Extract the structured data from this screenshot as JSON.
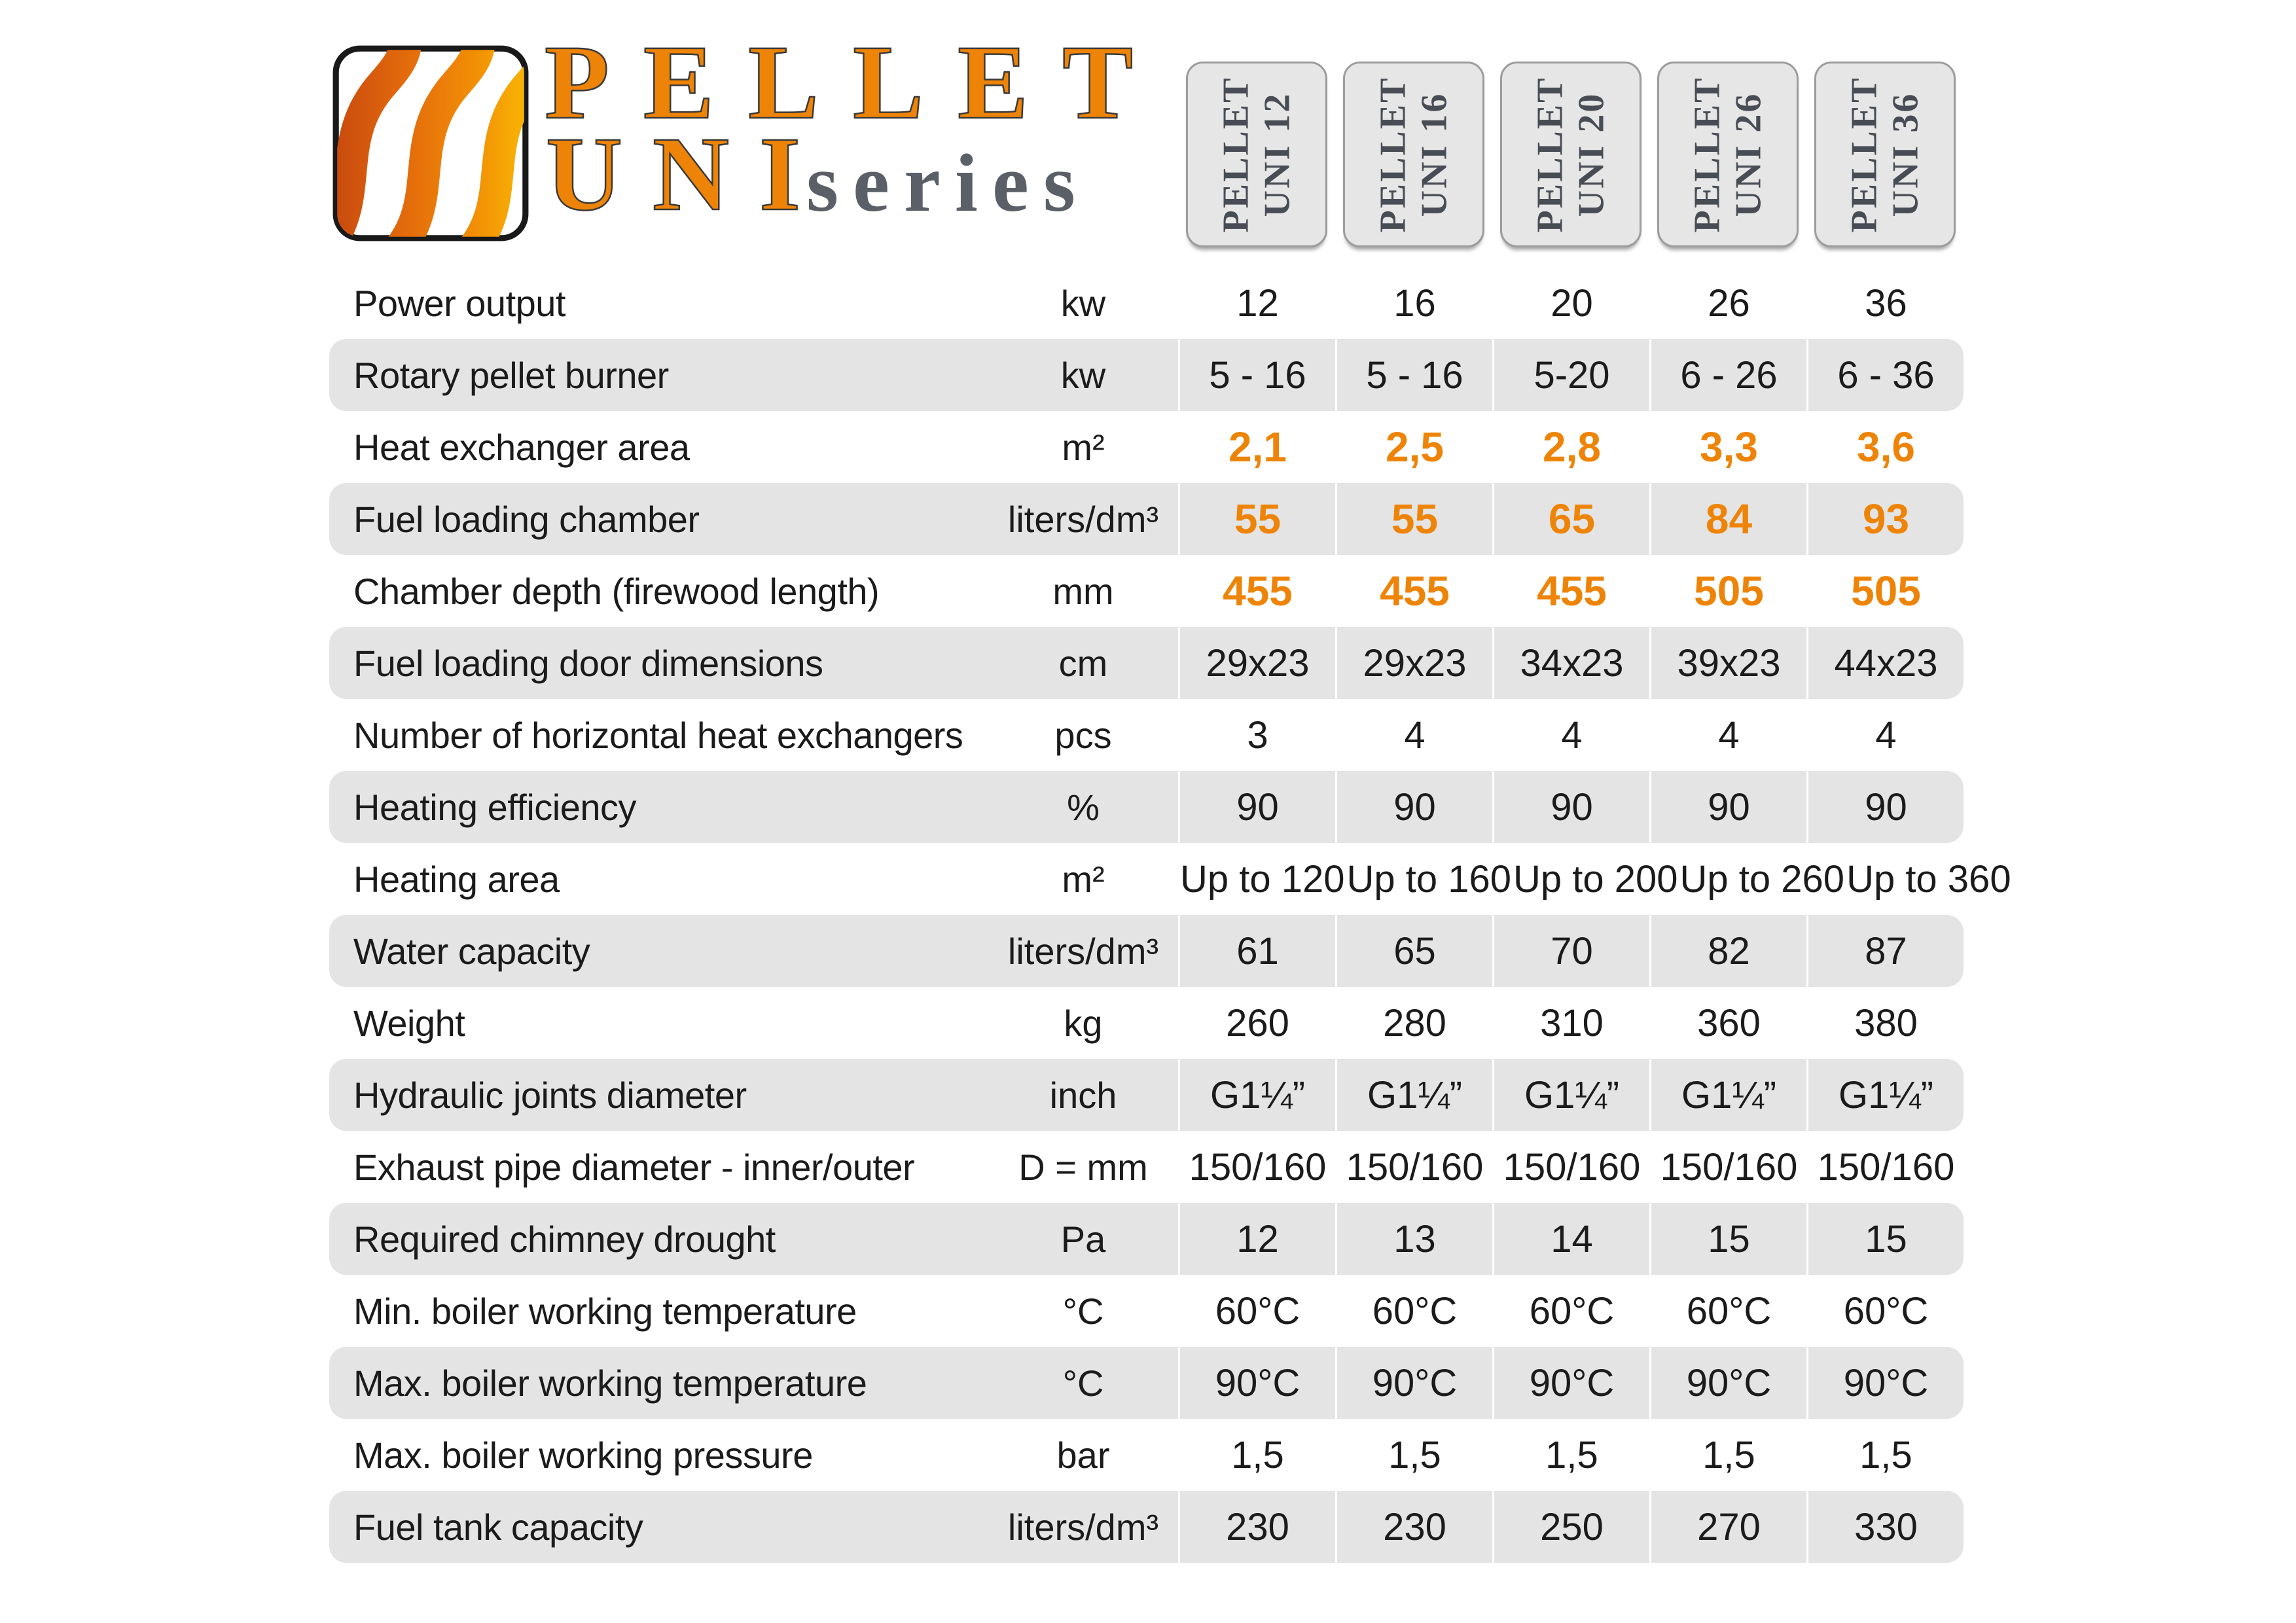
{
  "brand": {
    "word1": "PELLET",
    "word2": "UNI",
    "suffix": "series",
    "logo_icon": "flame-stripes-icon"
  },
  "colors": {
    "accent": "#ee8407",
    "stripe": "#e4e4e4",
    "header_text": "#484d55",
    "label_text": "#1b1b1b",
    "series_text": "#5a5f68",
    "logo_gradient": [
      "#c7480f",
      "#e2680c",
      "#f18c05",
      "#f9b804"
    ]
  },
  "columns": [
    {
      "line1": "PELLET",
      "line2": "UNI 12"
    },
    {
      "line1": "PELLET",
      "line2": "UNI 16"
    },
    {
      "line1": "PELLET",
      "line2": "UNI 20"
    },
    {
      "line1": "PELLET",
      "line2": "UNI 26"
    },
    {
      "line1": "PELLET",
      "line2": "UNI 36"
    }
  ],
  "table": {
    "rows": [
      {
        "label": "Power output",
        "unit": "kw",
        "accent": false,
        "values": [
          "12",
          "16",
          "20",
          "26",
          "36"
        ]
      },
      {
        "label": "Rotary pellet burner",
        "unit": "kw",
        "accent": false,
        "values": [
          "5 - 16",
          "5 - 16",
          "5-20",
          "6 - 26",
          "6 - 36"
        ]
      },
      {
        "label": "Heat exchanger area",
        "unit": "m²",
        "accent": true,
        "values": [
          "2,1",
          "2,5",
          "2,8",
          "3,3",
          "3,6"
        ]
      },
      {
        "label": "Fuel loading chamber",
        "unit": "liters/dm³",
        "accent": true,
        "values": [
          "55",
          "55",
          "65",
          "84",
          "93"
        ]
      },
      {
        "label": "Chamber depth (firewood length)",
        "unit": "mm",
        "accent": true,
        "values": [
          "455",
          "455",
          "455",
          "505",
          "505"
        ]
      },
      {
        "label": "Fuel loading door dimensions",
        "unit": "cm",
        "accent": false,
        "values": [
          "29x23",
          "29x23",
          "34x23",
          "39x23",
          "44x23"
        ]
      },
      {
        "label": "Number of horizontal heat exchangers",
        "unit": "pcs",
        "accent": false,
        "values": [
          "3",
          "4",
          "4",
          "4",
          "4"
        ]
      },
      {
        "label": "Heating efficiency",
        "unit": "%",
        "accent": false,
        "values": [
          "90",
          "90",
          "90",
          "90",
          "90"
        ]
      },
      {
        "label": "Heating area",
        "unit": "m²",
        "accent": false,
        "values": [
          "Up to 120",
          "Up to 160",
          "Up to 200",
          "Up to 260",
          "Up to 360"
        ]
      },
      {
        "label": "Water capacity",
        "unit": "liters/dm³",
        "accent": false,
        "values": [
          "61",
          "65",
          "70",
          "82",
          "87"
        ]
      },
      {
        "label": "Weight",
        "unit": "kg",
        "accent": false,
        "values": [
          "260",
          "280",
          "310",
          "360",
          "380"
        ]
      },
      {
        "label": "Hydraulic joints diameter",
        "unit": "inch",
        "accent": false,
        "values": [
          "G1¼”",
          "G1¼”",
          "G1¼”",
          "G1¼”",
          "G1¼”"
        ]
      },
      {
        "label": "Exhaust pipe diameter - inner/outer",
        "unit": "D = mm",
        "accent": false,
        "values": [
          "150/160",
          "150/160",
          "150/160",
          "150/160",
          "150/160"
        ]
      },
      {
        "label": "Required chimney drought",
        "unit": "Pa",
        "accent": false,
        "values": [
          "12",
          "13",
          "14",
          "15",
          "15"
        ]
      },
      {
        "label": "Min. boiler working temperature",
        "unit": "°C",
        "accent": false,
        "values": [
          "60°C",
          "60°C",
          "60°C",
          "60°C",
          "60°C"
        ]
      },
      {
        "label": "Max. boiler working temperature",
        "unit": "°C",
        "accent": false,
        "values": [
          "90°C",
          "90°C",
          "90°C",
          "90°C",
          "90°C"
        ]
      },
      {
        "label": "Max. boiler working pressure",
        "unit": "bar",
        "accent": false,
        "values": [
          "1,5",
          "1,5",
          "1,5",
          "1,5",
          "1,5"
        ]
      },
      {
        "label": "Fuel tank capacity",
        "unit": "liters/dm³",
        "accent": false,
        "values": [
          "230",
          "230",
          "250",
          "270",
          "330"
        ]
      }
    ]
  }
}
